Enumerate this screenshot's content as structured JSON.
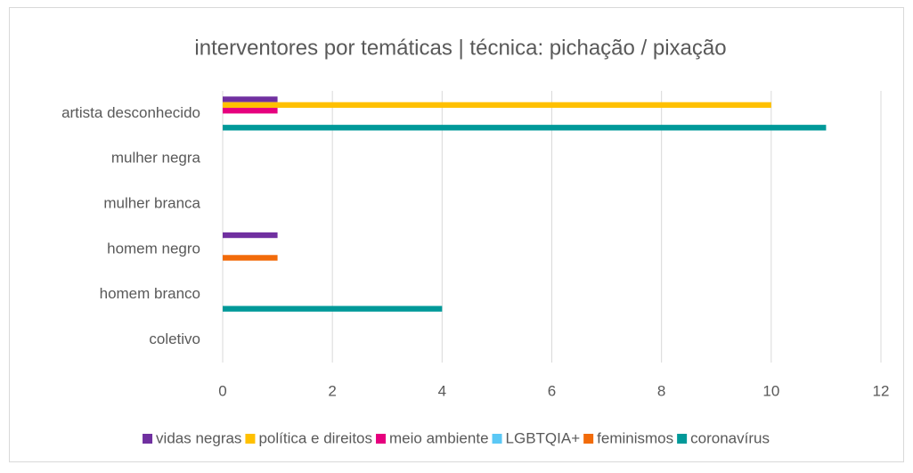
{
  "chart_data": {
    "type": "hbar",
    "title": "interventores por temáticas | técnica: pichação / pixação",
    "categories": [
      "artista desconhecido",
      "mulher negra",
      "mulher branca",
      "homem negro",
      "homem branco",
      "coletivo"
    ],
    "series": [
      {
        "name": "vidas negras",
        "color": "#7030a0",
        "values": [
          1,
          0,
          0,
          1,
          0,
          0
        ]
      },
      {
        "name": "política e direitos",
        "color": "#ffc000",
        "values": [
          10,
          0,
          0,
          0,
          0,
          0
        ]
      },
      {
        "name": "meio ambiente",
        "color": "#e6007e",
        "values": [
          1,
          0,
          0,
          0,
          0,
          0
        ]
      },
      {
        "name": "LGBTQIA+",
        "color": "#5bc8f5",
        "values": [
          0,
          0,
          0,
          0,
          0,
          0
        ]
      },
      {
        "name": "feminismos",
        "color": "#f26b0a",
        "values": [
          0,
          0,
          0,
          1,
          0,
          0
        ]
      },
      {
        "name": "coronavírus",
        "color": "#009999",
        "values": [
          11,
          0,
          0,
          0,
          4,
          0
        ]
      }
    ],
    "xlim": [
      0,
      12
    ],
    "xticks": [
      0,
      2,
      4,
      6,
      8,
      10,
      12
    ],
    "grid": true,
    "legend": "bottom"
  }
}
